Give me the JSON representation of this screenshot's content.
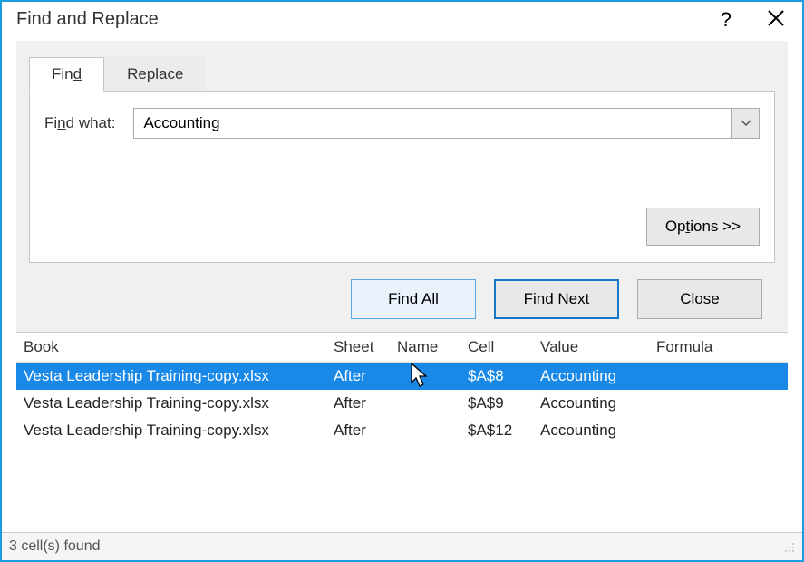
{
  "window": {
    "title": "Find and Replace",
    "help_symbol": "?",
    "border_color": "#1a9de0"
  },
  "tabs": {
    "find": "Find",
    "replace": "Replace",
    "find_u_char": "d"
  },
  "panel": {
    "find_what_label": "Find what:",
    "find_what_value": "Accounting",
    "options_label": "Options >>"
  },
  "buttons": {
    "find_all": "Find All",
    "find_next": "Find Next",
    "close": "Close"
  },
  "results": {
    "columns": {
      "book": "Book",
      "sheet": "Sheet",
      "name": "Name",
      "cell": "Cell",
      "value": "Value",
      "formula": "Formula"
    },
    "rows": [
      {
        "book": "Vesta Leadership Training-copy.xlsx",
        "sheet": "After",
        "name": "",
        "cell": "$A$8",
        "value": "Accounting",
        "formula": "",
        "selected": true
      },
      {
        "book": "Vesta Leadership Training-copy.xlsx",
        "sheet": "After",
        "name": "",
        "cell": "$A$9",
        "value": "Accounting",
        "formula": "",
        "selected": false
      },
      {
        "book": "Vesta Leadership Training-copy.xlsx",
        "sheet": "After",
        "name": "",
        "cell": "$A$12",
        "value": "Accounting",
        "formula": "",
        "selected": false
      }
    ],
    "selected_bg": "#1a88e6",
    "selected_fg": "#ffffff"
  },
  "status": {
    "text": "3 cell(s) found"
  }
}
